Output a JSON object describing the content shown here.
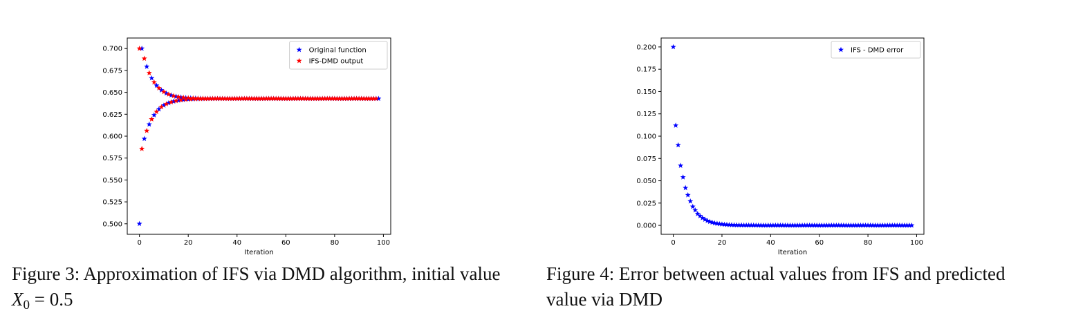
{
  "chart_data": [
    {
      "type": "scatter",
      "xlabel": "Iteration",
      "ylabel": "",
      "xlim": [
        -5,
        103
      ],
      "ylim": [
        0.488,
        0.712
      ],
      "xticks": [
        0,
        20,
        40,
        60,
        80,
        100
      ],
      "yticks": [
        0.5,
        0.525,
        0.55,
        0.575,
        0.6,
        0.625,
        0.65,
        0.675,
        0.7
      ],
      "xtick_labels": [
        "0",
        "20",
        "40",
        "60",
        "80",
        "100"
      ],
      "ytick_labels": [
        "0.500",
        "0.525",
        "0.550",
        "0.575",
        "0.600",
        "0.625",
        "0.650",
        "0.675",
        "0.700"
      ],
      "grid": false,
      "legend_position": "top-right",
      "marker": "star",
      "series": [
        {
          "name": "Original function",
          "color": "#0000ff",
          "model": {
            "kind": "alternating_decay",
            "n": 99,
            "start": 0.5,
            "first_x": 0,
            "limit": 0.6428,
            "amp": 0.0572,
            "ratio": 0.8
          }
        },
        {
          "name": "IFS-DMD output",
          "color": "#ff0000",
          "model": {
            "kind": "alternating_decay",
            "n": 98,
            "start": 0.7,
            "first_x": 0,
            "limit": 0.6428,
            "amp": 0.0572,
            "ratio": 0.8
          }
        }
      ]
    },
    {
      "type": "scatter",
      "xlabel": "Iteration",
      "ylabel": "",
      "xlim": [
        -5,
        103
      ],
      "ylim": [
        -0.01,
        0.21
      ],
      "xticks": [
        0,
        20,
        40,
        60,
        80,
        100
      ],
      "yticks": [
        0,
        0.025,
        0.05,
        0.075,
        0.1,
        0.125,
        0.15,
        0.175,
        0.2
      ],
      "xtick_labels": [
        "0",
        "20",
        "40",
        "60",
        "80",
        "100"
      ],
      "ytick_labels": [
        "0.000",
        "0.025",
        "0.050",
        "0.075",
        "0.100",
        "0.125",
        "0.150",
        "0.175",
        "0.200"
      ],
      "grid": false,
      "legend_position": "top-right",
      "marker": "star",
      "series": [
        {
          "name": "IFS - DMD error",
          "color": "#0000ff",
          "model": {
            "kind": "decay",
            "n": 99,
            "first": 0.2,
            "values_head": [
              0.2,
              0.112,
              0.09,
              0.067,
              0.054,
              0.042,
              0.034,
              0.027,
              0.021,
              0.017,
              0.013,
              0.0105,
              0.0083,
              0.0066,
              0.0052,
              0.0041
            ],
            "ratio": 0.79
          }
        }
      ]
    }
  ],
  "captions": {
    "fig3": {
      "prefix": "Figure 3: Approximation of IFS via DMD algorithm, initial value ",
      "var": "X",
      "sub": "0",
      "suffix": " = 0.5"
    },
    "fig4": {
      "text": "Figure 4: Error between actual values from IFS and predicted value via DMD"
    }
  }
}
